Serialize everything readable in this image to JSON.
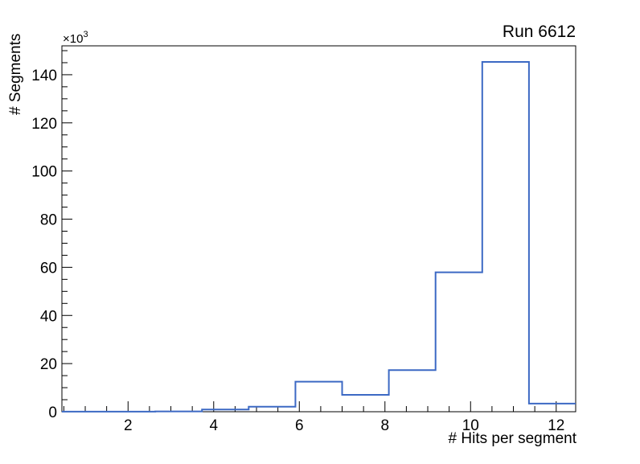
{
  "chart_data": {
    "type": "histogram",
    "title": "Run 6612",
    "xlabel": "# Hits per segment",
    "ylabel": "# Segments",
    "y_multiplier_base": "×10",
    "y_multiplier_exponent": "3",
    "y_unit_scale": 1000,
    "xlim": [
      0.455,
      12.455
    ],
    "ylim_thousands": [
      0,
      152
    ],
    "x_major_ticks": [
      2,
      4,
      6,
      8,
      10,
      12
    ],
    "x_minor_step": 0.5,
    "y_major_ticks": [
      0,
      20,
      40,
      60,
      80,
      100,
      120,
      140
    ],
    "y_minor_step": 5,
    "bin_edges": [
      0.455,
      1.545,
      2.636,
      3.727,
      4.818,
      5.909,
      7.0,
      8.091,
      9.182,
      10.273,
      11.364,
      12.455
    ],
    "counts_thousands": [
      0.03,
      0.06,
      0.12,
      0.9,
      2.1,
      12.5,
      7.0,
      17.3,
      57.9,
      145.3,
      3.4
    ],
    "counts": [
      30,
      60,
      120,
      900,
      2100,
      12500,
      7000,
      17300,
      57900,
      145300,
      3400
    ],
    "legend": "none",
    "grid": "off",
    "line_color": "#3c69c4",
    "frame_color": "#000000",
    "background_color": "#ffffff"
  }
}
